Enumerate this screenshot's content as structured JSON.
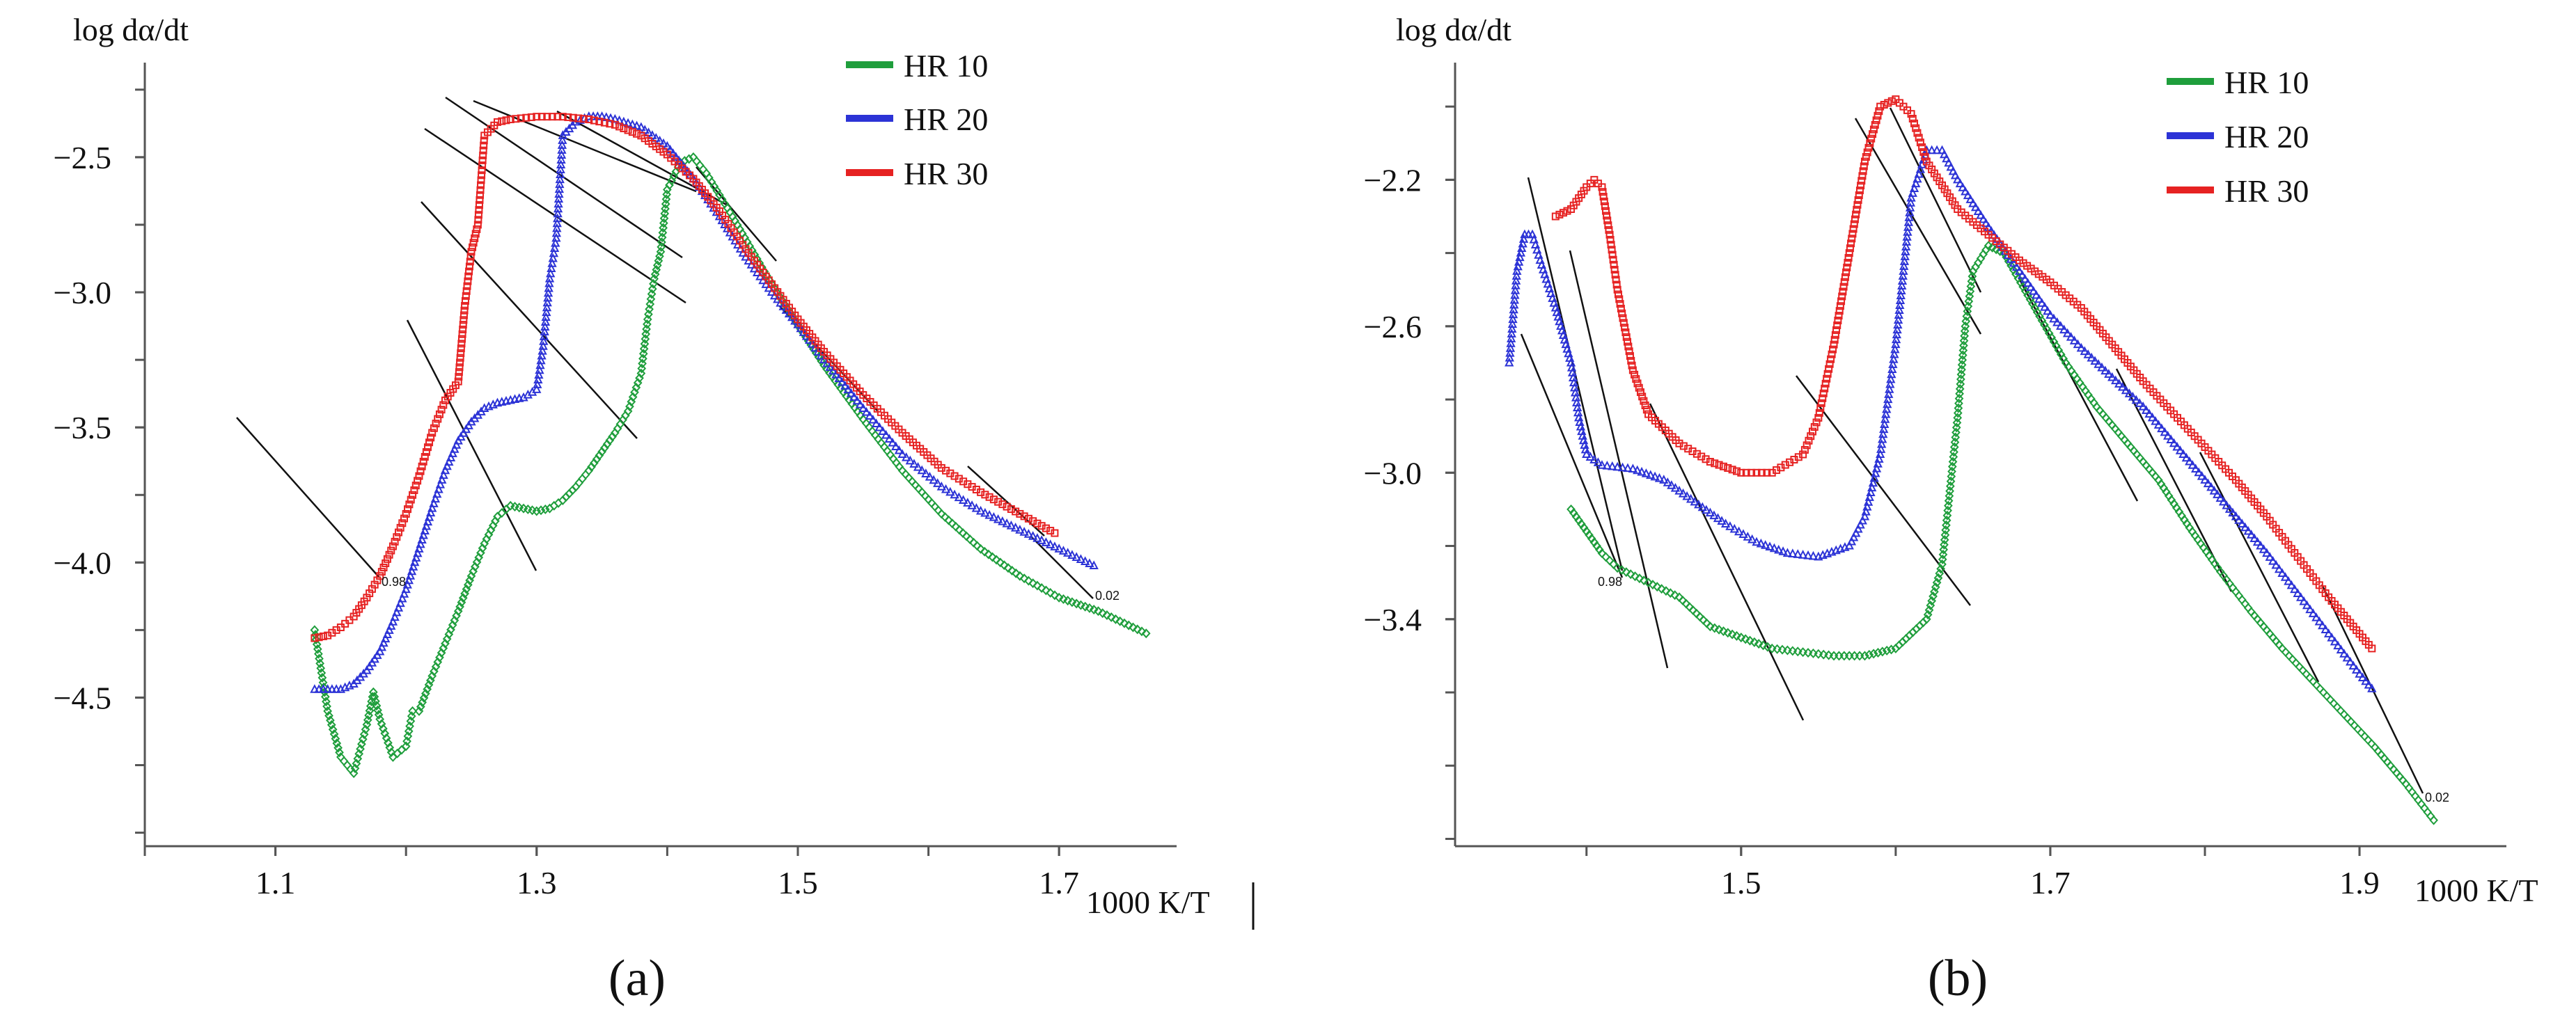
{
  "chart_data": [
    {
      "panel": "a",
      "panel_label": "(a)",
      "type": "scatter",
      "ylabel": "log dα/dt",
      "xlabel": "1000 K/T",
      "xlim": [
        1.0,
        1.79
      ],
      "ylim": [
        -5.05,
        -2.15
      ],
      "xticks": [
        1.1,
        1.3,
        1.5,
        1.7
      ],
      "xtick_labels": [
        "1.1",
        "1.3",
        "1.5",
        "1.7"
      ],
      "yticks": [
        -2.5,
        -3.0,
        -3.5,
        -4.0,
        -4.5
      ],
      "ytick_labels": [
        "−2.5",
        "−3.0",
        "−3.5",
        "−4.0",
        "−4.5"
      ],
      "legend": {
        "position": "top-right",
        "entries": [
          "HR 10",
          "HR 20",
          "HR 30"
        ]
      },
      "annotations": [
        "0.98",
        "0.02"
      ],
      "series": [
        {
          "name": "HR 10",
          "color": "#1f9e3c",
          "marker": "diamond",
          "points": [
            [
              1.13,
              -4.25
            ],
            [
              1.14,
              -4.55
            ],
            [
              1.15,
              -4.72
            ],
            [
              1.16,
              -4.78
            ],
            [
              1.17,
              -4.6
            ],
            [
              1.175,
              -4.48
            ],
            [
              1.18,
              -4.58
            ],
            [
              1.19,
              -4.72
            ],
            [
              1.2,
              -4.68
            ],
            [
              1.205,
              -4.55
            ],
            [
              1.21,
              -4.55
            ],
            [
              1.22,
              -4.42
            ],
            [
              1.23,
              -4.3
            ],
            [
              1.24,
              -4.18
            ],
            [
              1.25,
              -4.05
            ],
            [
              1.26,
              -3.93
            ],
            [
              1.27,
              -3.83
            ],
            [
              1.28,
              -3.79
            ],
            [
              1.29,
              -3.8
            ],
            [
              1.3,
              -3.81
            ],
            [
              1.31,
              -3.8
            ],
            [
              1.32,
              -3.77
            ],
            [
              1.33,
              -3.72
            ],
            [
              1.34,
              -3.66
            ],
            [
              1.35,
              -3.59
            ],
            [
              1.36,
              -3.52
            ],
            [
              1.37,
              -3.44
            ],
            [
              1.38,
              -3.3
            ],
            [
              1.385,
              -3.1
            ],
            [
              1.39,
              -2.95
            ],
            [
              1.395,
              -2.85
            ],
            [
              1.4,
              -2.62
            ],
            [
              1.41,
              -2.52
            ],
            [
              1.42,
              -2.5
            ],
            [
              1.43,
              -2.56
            ],
            [
              1.45,
              -2.72
            ],
            [
              1.48,
              -2.97
            ],
            [
              1.5,
              -3.12
            ],
            [
              1.52,
              -3.27
            ],
            [
              1.55,
              -3.47
            ],
            [
              1.58,
              -3.66
            ],
            [
              1.61,
              -3.82
            ],
            [
              1.64,
              -3.95
            ],
            [
              1.67,
              -4.05
            ],
            [
              1.7,
              -4.13
            ],
            [
              1.73,
              -4.18
            ],
            [
              1.77,
              -4.27
            ]
          ]
        },
        {
          "name": "HR 20",
          "color": "#2c33d6",
          "marker": "triangle",
          "points": [
            [
              1.13,
              -4.47
            ],
            [
              1.14,
              -4.47
            ],
            [
              1.15,
              -4.47
            ],
            [
              1.16,
              -4.45
            ],
            [
              1.17,
              -4.4
            ],
            [
              1.18,
              -4.33
            ],
            [
              1.19,
              -4.22
            ],
            [
              1.2,
              -4.1
            ],
            [
              1.21,
              -3.95
            ],
            [
              1.22,
              -3.8
            ],
            [
              1.23,
              -3.66
            ],
            [
              1.24,
              -3.55
            ],
            [
              1.25,
              -3.48
            ],
            [
              1.26,
              -3.43
            ],
            [
              1.27,
              -3.41
            ],
            [
              1.28,
              -3.4
            ],
            [
              1.29,
              -3.39
            ],
            [
              1.3,
              -3.36
            ],
            [
              1.305,
              -3.2
            ],
            [
              1.31,
              -2.95
            ],
            [
              1.315,
              -2.8
            ],
            [
              1.32,
              -2.42
            ],
            [
              1.33,
              -2.37
            ],
            [
              1.34,
              -2.35
            ],
            [
              1.35,
              -2.35
            ],
            [
              1.36,
              -2.36
            ],
            [
              1.38,
              -2.39
            ],
            [
              1.4,
              -2.46
            ],
            [
              1.42,
              -2.58
            ],
            [
              1.44,
              -2.72
            ],
            [
              1.46,
              -2.87
            ],
            [
              1.48,
              -3.0
            ],
            [
              1.5,
              -3.12
            ],
            [
              1.52,
              -3.25
            ],
            [
              1.55,
              -3.43
            ],
            [
              1.58,
              -3.6
            ],
            [
              1.61,
              -3.72
            ],
            [
              1.64,
              -3.81
            ],
            [
              1.67,
              -3.88
            ],
            [
              1.7,
              -3.95
            ],
            [
              1.73,
              -4.02
            ]
          ]
        },
        {
          "name": "HR 30",
          "color": "#e62222",
          "marker": "square",
          "points": [
            [
              1.13,
              -4.28
            ],
            [
              1.14,
              -4.27
            ],
            [
              1.15,
              -4.24
            ],
            [
              1.16,
              -4.2
            ],
            [
              1.17,
              -4.13
            ],
            [
              1.18,
              -4.05
            ],
            [
              1.19,
              -3.94
            ],
            [
              1.2,
              -3.82
            ],
            [
              1.21,
              -3.68
            ],
            [
              1.22,
              -3.52
            ],
            [
              1.23,
              -3.4
            ],
            [
              1.24,
              -3.33
            ],
            [
              1.245,
              -3.05
            ],
            [
              1.25,
              -2.85
            ],
            [
              1.255,
              -2.75
            ],
            [
              1.26,
              -2.42
            ],
            [
              1.27,
              -2.37
            ],
            [
              1.28,
              -2.36
            ],
            [
              1.3,
              -2.35
            ],
            [
              1.32,
              -2.35
            ],
            [
              1.34,
              -2.36
            ],
            [
              1.36,
              -2.38
            ],
            [
              1.38,
              -2.42
            ],
            [
              1.4,
              -2.49
            ],
            [
              1.42,
              -2.58
            ],
            [
              1.44,
              -2.7
            ],
            [
              1.46,
              -2.84
            ],
            [
              1.48,
              -2.97
            ],
            [
              1.5,
              -3.1
            ],
            [
              1.52,
              -3.22
            ],
            [
              1.55,
              -3.38
            ],
            [
              1.58,
              -3.52
            ],
            [
              1.61,
              -3.65
            ],
            [
              1.64,
              -3.74
            ],
            [
              1.67,
              -3.82
            ],
            [
              1.7,
              -3.9
            ]
          ]
        }
      ]
    },
    {
      "panel": "b",
      "panel_label": "(b)",
      "type": "scatter",
      "ylabel": "log dα/dt",
      "xlabel": "1000 K/T",
      "xlim": [
        1.315,
        1.995
      ],
      "ylim": [
        -4.02,
        -1.88
      ],
      "xticks": [
        1.5,
        1.7,
        1.9
      ],
      "xtick_labels": [
        "1.5",
        "1.7",
        "1.9"
      ],
      "yticks": [
        -2.2,
        -2.6,
        -3.0,
        -3.4
      ],
      "ytick_labels": [
        "−2.2",
        "−2.6",
        "−3.0",
        "−3.4"
      ],
      "legend": {
        "position": "top-right",
        "entries": [
          "HR 10",
          "HR 20",
          "HR 30"
        ]
      },
      "annotations": [
        "0.98",
        "0.02"
      ],
      "series": [
        {
          "name": "HR 10",
          "color": "#1f9e3c",
          "marker": "diamond",
          "points": [
            [
              1.39,
              -3.1
            ],
            [
              1.4,
              -3.16
            ],
            [
              1.41,
              -3.22
            ],
            [
              1.42,
              -3.26
            ],
            [
              1.44,
              -3.3
            ],
            [
              1.46,
              -3.34
            ],
            [
              1.48,
              -3.42
            ],
            [
              1.5,
              -3.45
            ],
            [
              1.52,
              -3.48
            ],
            [
              1.54,
              -3.49
            ],
            [
              1.56,
              -3.5
            ],
            [
              1.58,
              -3.5
            ],
            [
              1.6,
              -3.48
            ],
            [
              1.62,
              -3.4
            ],
            [
              1.63,
              -3.25
            ],
            [
              1.635,
              -3.05
            ],
            [
              1.64,
              -2.85
            ],
            [
              1.645,
              -2.6
            ],
            [
              1.65,
              -2.45
            ],
            [
              1.66,
              -2.38
            ],
            [
              1.67,
              -2.4
            ],
            [
              1.69,
              -2.55
            ],
            [
              1.71,
              -2.7
            ],
            [
              1.73,
              -2.82
            ],
            [
              1.75,
              -2.92
            ],
            [
              1.77,
              -3.02
            ],
            [
              1.79,
              -3.15
            ],
            [
              1.81,
              -3.27
            ],
            [
              1.83,
              -3.38
            ],
            [
              1.85,
              -3.48
            ],
            [
              1.87,
              -3.57
            ],
            [
              1.89,
              -3.66
            ],
            [
              1.91,
              -3.75
            ],
            [
              1.93,
              -3.85
            ],
            [
              1.95,
              -3.96
            ]
          ]
        },
        {
          "name": "HR 20",
          "color": "#2c33d6",
          "marker": "triangle",
          "points": [
            [
              1.35,
              -2.7
            ],
            [
              1.355,
              -2.45
            ],
            [
              1.36,
              -2.35
            ],
            [
              1.365,
              -2.35
            ],
            [
              1.37,
              -2.42
            ],
            [
              1.38,
              -2.55
            ],
            [
              1.39,
              -2.7
            ],
            [
              1.395,
              -2.85
            ],
            [
              1.4,
              -2.95
            ],
            [
              1.41,
              -2.98
            ],
            [
              1.43,
              -2.99
            ],
            [
              1.45,
              -3.02
            ],
            [
              1.47,
              -3.08
            ],
            [
              1.49,
              -3.14
            ],
            [
              1.51,
              -3.19
            ],
            [
              1.53,
              -3.22
            ],
            [
              1.55,
              -3.23
            ],
            [
              1.57,
              -3.2
            ],
            [
              1.58,
              -3.12
            ],
            [
              1.59,
              -2.95
            ],
            [
              1.595,
              -2.8
            ],
            [
              1.6,
              -2.65
            ],
            [
              1.605,
              -2.45
            ],
            [
              1.61,
              -2.25
            ],
            [
              1.62,
              -2.12
            ],
            [
              1.63,
              -2.12
            ],
            [
              1.64,
              -2.2
            ],
            [
              1.66,
              -2.33
            ],
            [
              1.68,
              -2.45
            ],
            [
              1.7,
              -2.57
            ],
            [
              1.72,
              -2.66
            ],
            [
              1.74,
              -2.74
            ],
            [
              1.76,
              -2.82
            ],
            [
              1.78,
              -2.92
            ],
            [
              1.8,
              -3.02
            ],
            [
              1.82,
              -3.12
            ],
            [
              1.84,
              -3.22
            ],
            [
              1.86,
              -3.33
            ],
            [
              1.88,
              -3.44
            ],
            [
              1.9,
              -3.55
            ],
            [
              1.91,
              -3.6
            ]
          ]
        },
        {
          "name": "HR 30",
          "color": "#e62222",
          "marker": "square",
          "points": [
            [
              1.38,
              -2.3
            ],
            [
              1.39,
              -2.28
            ],
            [
              1.4,
              -2.22
            ],
            [
              1.405,
              -2.2
            ],
            [
              1.41,
              -2.22
            ],
            [
              1.415,
              -2.35
            ],
            [
              1.42,
              -2.5
            ],
            [
              1.43,
              -2.72
            ],
            [
              1.44,
              -2.84
            ],
            [
              1.46,
              -2.92
            ],
            [
              1.48,
              -2.97
            ],
            [
              1.5,
              -3.0
            ],
            [
              1.52,
              -3.0
            ],
            [
              1.54,
              -2.95
            ],
            [
              1.55,
              -2.85
            ],
            [
              1.56,
              -2.65
            ],
            [
              1.57,
              -2.4
            ],
            [
              1.58,
              -2.15
            ],
            [
              1.59,
              -2.0
            ],
            [
              1.6,
              -1.98
            ],
            [
              1.61,
              -2.02
            ],
            [
              1.62,
              -2.15
            ],
            [
              1.64,
              -2.28
            ],
            [
              1.66,
              -2.35
            ],
            [
              1.68,
              -2.42
            ],
            [
              1.7,
              -2.48
            ],
            [
              1.72,
              -2.55
            ],
            [
              1.74,
              -2.65
            ],
            [
              1.76,
              -2.75
            ],
            [
              1.78,
              -2.84
            ],
            [
              1.8,
              -2.93
            ],
            [
              1.82,
              -3.02
            ],
            [
              1.84,
              -3.12
            ],
            [
              1.86,
              -3.23
            ],
            [
              1.88,
              -3.34
            ],
            [
              1.9,
              -3.44
            ],
            [
              1.91,
              -3.49
            ]
          ]
        }
      ]
    }
  ]
}
